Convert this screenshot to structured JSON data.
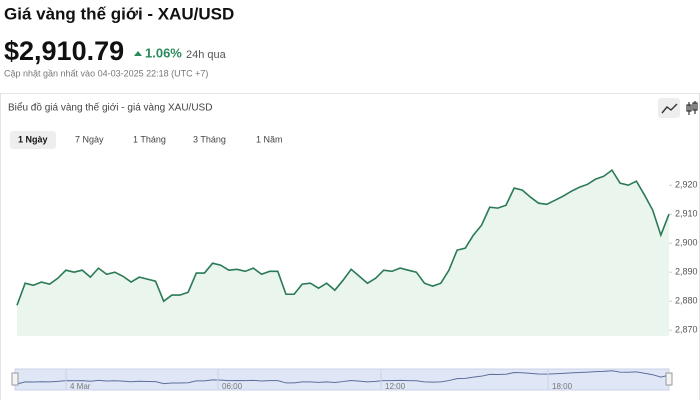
{
  "header": {
    "title": "Giá vàng thế giới - XAU/USD",
    "price": "$2,910.79",
    "change": "1.06%",
    "change_period": "24h qua",
    "updated": "Cập nhật gần nhất vào 04-03-2025 22:18 (UTC +7)"
  },
  "card": {
    "title": "Biểu đồ giá vàng thế giới - giá vàng XAU/USD",
    "tabs": [
      "1 Ngày",
      "7 Ngày",
      "1 Tháng",
      "3 Tháng",
      "1 Năm"
    ],
    "active_tab": 0
  },
  "chart_data": {
    "type": "area",
    "color": "#2a7a55",
    "fill": "#eaf5ee",
    "values": [
      2878.6,
      2886.2,
      2885.5,
      2886.6,
      2885.9,
      2887.9,
      2890.7,
      2890,
      2890.7,
      2888.3,
      2891.4,
      2889.3,
      2890,
      2888.6,
      2886.6,
      2888.3,
      2887.6,
      2886.9,
      2880,
      2882.1,
      2882.1,
      2883.1,
      2889.7,
      2889.7,
      2893.1,
      2892.4,
      2890.7,
      2891,
      2890.3,
      2891.4,
      2889.3,
      2890.3,
      2890.3,
      2882.4,
      2882.4,
      2885.9,
      2886.2,
      2884.5,
      2886.2,
      2883.8,
      2887.2,
      2891,
      2888.6,
      2886.2,
      2887.9,
      2890.7,
      2890.3,
      2891.4,
      2890.7,
      2890,
      2886.2,
      2885.2,
      2886.2,
      2890.7,
      2897.6,
      2898.3,
      2902.8,
      2906.2,
      2912.4,
      2912.1,
      2913.1,
      2919,
      2918.3,
      2915.9,
      2913.8,
      2913.4,
      2914.8,
      2916.2,
      2917.9,
      2919.3,
      2920.3,
      2922.1,
      2923.1,
      2925.2,
      2920.7,
      2920,
      2921.4,
      2916.6,
      2911.4,
      2902.8,
      2910
    ],
    "ylim": [
      2868,
      2928
    ],
    "yticks": [
      {
        "value": 2870,
        "label": "2,870"
      },
      {
        "value": 2880,
        "label": "2,880"
      },
      {
        "value": 2890,
        "label": "2,890"
      },
      {
        "value": 2900,
        "label": "2,900"
      },
      {
        "value": 2910,
        "label": "2,910"
      },
      {
        "value": 2920,
        "label": "2,920"
      }
    ]
  },
  "navigator": {
    "labels": [
      "4 Mar",
      "06:00",
      "12:00",
      "18:00"
    ]
  }
}
